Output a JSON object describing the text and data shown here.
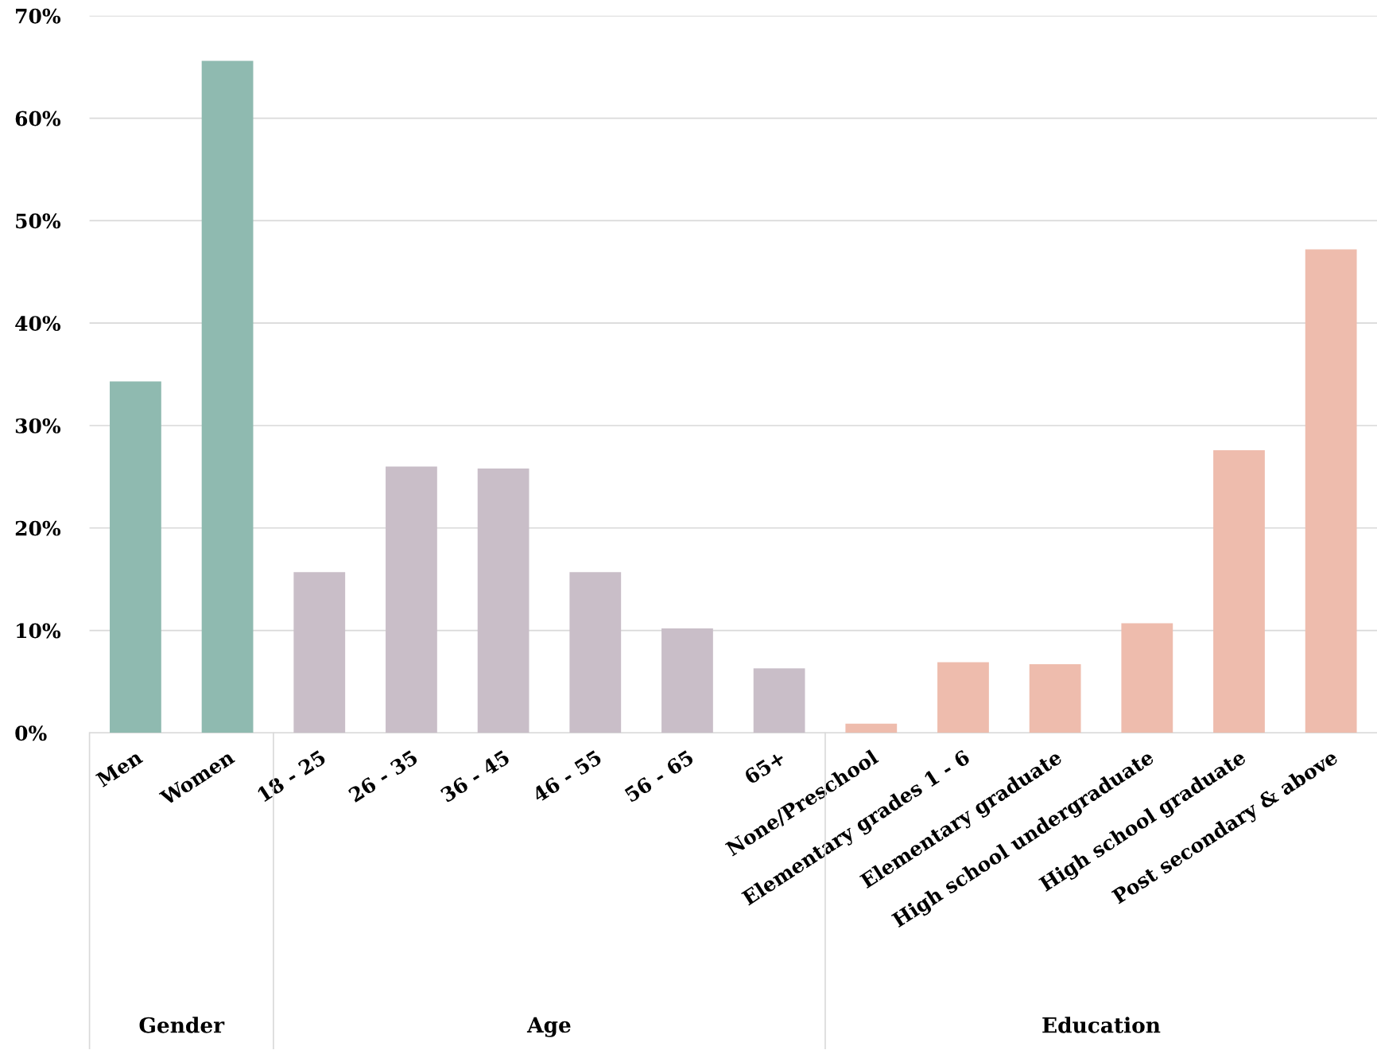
{
  "chart_data": {
    "type": "bar",
    "categories": [
      "Men",
      "Women",
      "18 - 25",
      "26 - 35",
      "36 - 45",
      "46 - 55",
      "56 - 65",
      "65+",
      "None/Preschool",
      "Elementary grades 1 - 6",
      "Elementary graduate",
      "High school undergraduate",
      "High school graduate",
      "Post secondary & above"
    ],
    "values": [
      34.3,
      65.6,
      15.7,
      26.0,
      25.8,
      15.7,
      10.2,
      6.3,
      0.9,
      6.9,
      6.7,
      10.7,
      27.6,
      47.2
    ],
    "colors": [
      "#8fbab0",
      "#8fbab0",
      "#c9bec8",
      "#c9bec8",
      "#c9bec8",
      "#c9bec8",
      "#c9bec8",
      "#c9bec8",
      "#eebcad",
      "#eebcad",
      "#eebcad",
      "#eebcad",
      "#eebcad",
      "#eebcad"
    ],
    "annotations": [
      "Gender",
      "Age",
      "Education"
    ],
    "ylim": [
      0,
      70
    ],
    "yticks": [
      {
        "value": 0,
        "label": "0%"
      },
      {
        "value": 10,
        "label": "10%"
      },
      {
        "value": 20,
        "label": "20%"
      },
      {
        "value": 30,
        "label": "30%"
      },
      {
        "value": 40,
        "label": "40%"
      },
      {
        "value": 50,
        "label": "50%"
      },
      {
        "value": 60,
        "label": "60%"
      },
      {
        "value": 70,
        "label": "70%"
      }
    ],
    "grid": "y",
    "legend": false
  }
}
